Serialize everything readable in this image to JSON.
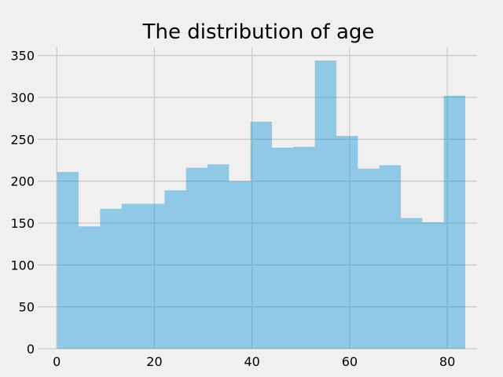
{
  "chart_data": {
    "type": "bar",
    "title": "The distribution of age",
    "xlabel": "",
    "ylabel": "",
    "xlim": [
      -3.9,
      86.1
    ],
    "ylim": [
      0,
      360
    ],
    "x_ticks": [
      0,
      20,
      40,
      60,
      80
    ],
    "y_ticks": [
      0,
      50,
      100,
      150,
      200,
      250,
      300,
      350
    ],
    "grid": true,
    "bar_color": "#008fd5",
    "bins": [
      {
        "start": 0.08,
        "end": 4.48,
        "count": 211
      },
      {
        "start": 4.48,
        "end": 8.88,
        "count": 146
      },
      {
        "start": 8.88,
        "end": 13.28,
        "count": 167
      },
      {
        "start": 13.28,
        "end": 17.68,
        "count": 173
      },
      {
        "start": 17.68,
        "end": 22.08,
        "count": 173
      },
      {
        "start": 22.08,
        "end": 26.48,
        "count": 189
      },
      {
        "start": 26.48,
        "end": 30.88,
        "count": 216
      },
      {
        "start": 30.88,
        "end": 35.28,
        "count": 220
      },
      {
        "start": 35.28,
        "end": 39.68,
        "count": 200
      },
      {
        "start": 39.68,
        "end": 44.08,
        "count": 271
      },
      {
        "start": 44.08,
        "end": 48.48,
        "count": 240
      },
      {
        "start": 48.48,
        "end": 52.88,
        "count": 241
      },
      {
        "start": 52.88,
        "end": 57.28,
        "count": 344
      },
      {
        "start": 57.28,
        "end": 61.68,
        "count": 254
      },
      {
        "start": 61.68,
        "end": 66.08,
        "count": 215
      },
      {
        "start": 66.08,
        "end": 70.48,
        "count": 219
      },
      {
        "start": 70.48,
        "end": 74.88,
        "count": 156
      },
      {
        "start": 74.88,
        "end": 79.28,
        "count": 151
      },
      {
        "start": 79.28,
        "end": 83.68,
        "count": 302
      }
    ]
  }
}
